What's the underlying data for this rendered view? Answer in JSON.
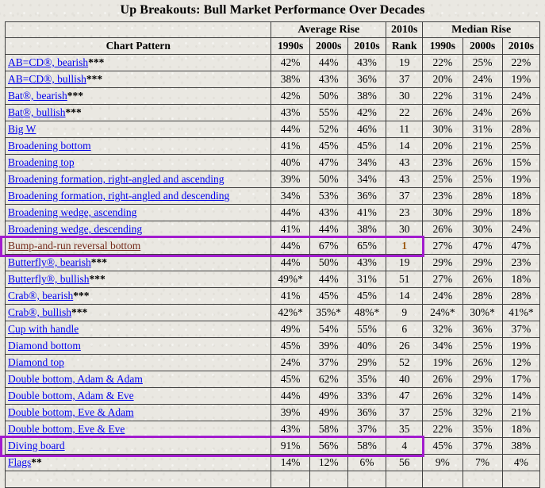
{
  "title": "Up Breakouts: Bull Market Performance Over Decades",
  "table": {
    "header_groups": {
      "corner": "",
      "average_rise": "Average Rise",
      "rank_decade": "2010s",
      "median_rise": "Median Rise"
    },
    "columns": [
      "Chart Pattern",
      "1990s",
      "2000s",
      "2010s",
      "Rank",
      "1990s",
      "2000s",
      "2010s"
    ],
    "rows": [
      {
        "pattern": "AB=CD®, bearish",
        "suffix": "***",
        "values": [
          "42%",
          "44%",
          "43%",
          "19",
          "22%",
          "25%",
          "22%"
        ]
      },
      {
        "pattern": "AB=CD®, bullish",
        "suffix": "***",
        "values": [
          "38%",
          "43%",
          "36%",
          "37",
          "20%",
          "24%",
          "19%"
        ]
      },
      {
        "pattern": "Bat®, bearish",
        "suffix": "***",
        "values": [
          "42%",
          "50%",
          "38%",
          "30",
          "22%",
          "31%",
          "24%"
        ]
      },
      {
        "pattern": "Bat®, bullish",
        "suffix": "***",
        "values": [
          "43%",
          "55%",
          "42%",
          "22",
          "26%",
          "24%",
          "26%"
        ]
      },
      {
        "pattern": "Big W",
        "suffix": "",
        "values": [
          "44%",
          "52%",
          "46%",
          "11",
          "30%",
          "31%",
          "28%"
        ]
      },
      {
        "pattern": "Broadening bottom",
        "suffix": "",
        "values": [
          "41%",
          "45%",
          "45%",
          "14",
          "20%",
          "21%",
          "25%"
        ]
      },
      {
        "pattern": "Broadening top",
        "suffix": "",
        "values": [
          "40%",
          "47%",
          "34%",
          "43",
          "23%",
          "26%",
          "15%"
        ]
      },
      {
        "pattern": "Broadening formation, right-angled and ascending",
        "suffix": "",
        "values": [
          "39%",
          "50%",
          "34%",
          "43",
          "25%",
          "25%",
          "19%"
        ]
      },
      {
        "pattern": "Broadening formation, right-angled and descending",
        "suffix": "",
        "values": [
          "34%",
          "53%",
          "36%",
          "37",
          "23%",
          "28%",
          "18%"
        ]
      },
      {
        "pattern": "Broadening wedge, ascending",
        "suffix": "",
        "values": [
          "44%",
          "43%",
          "41%",
          "23",
          "30%",
          "29%",
          "18%"
        ]
      },
      {
        "pattern": "Broadening wedge, descending",
        "suffix": "",
        "values": [
          "41%",
          "44%",
          "38%",
          "30",
          "26%",
          "30%",
          "24%"
        ]
      },
      {
        "pattern": "Bump-and-run reversal bottom",
        "suffix": "",
        "values": [
          "44%",
          "67%",
          "65%",
          "1",
          "27%",
          "47%",
          "47%"
        ],
        "highlight": true,
        "visited": true,
        "rank_accent": true
      },
      {
        "pattern": "Butterfly®, bearish",
        "suffix": "***",
        "values": [
          "44%",
          "50%",
          "43%",
          "19",
          "29%",
          "29%",
          "23%"
        ]
      },
      {
        "pattern": "Butterfly®, bullish",
        "suffix": "***",
        "values": [
          "49%*",
          "44%",
          "31%",
          "51",
          "27%",
          "26%",
          "18%"
        ]
      },
      {
        "pattern": "Crab®, bearish",
        "suffix": "***",
        "values": [
          "41%",
          "45%",
          "45%",
          "14",
          "24%",
          "28%",
          "28%"
        ]
      },
      {
        "pattern": "Crab®, bullish",
        "suffix": "***",
        "values": [
          "42%*",
          "35%*",
          "48%*",
          "9",
          "24%*",
          "30%*",
          "41%*"
        ]
      },
      {
        "pattern": "Cup with handle",
        "suffix": "",
        "values": [
          "49%",
          "54%",
          "55%",
          "6",
          "32%",
          "36%",
          "37%"
        ]
      },
      {
        "pattern": "Diamond bottom",
        "suffix": "",
        "values": [
          "45%",
          "39%",
          "40%",
          "26",
          "34%",
          "25%",
          "19%"
        ]
      },
      {
        "pattern": "Diamond top",
        "suffix": "",
        "values": [
          "24%",
          "37%",
          "29%",
          "52",
          "19%",
          "26%",
          "12%"
        ]
      },
      {
        "pattern": "Double bottom, Adam & Adam",
        "suffix": "",
        "values": [
          "45%",
          "62%",
          "35%",
          "40",
          "26%",
          "29%",
          "17%"
        ]
      },
      {
        "pattern": "Double bottom, Adam & Eve",
        "suffix": "",
        "values": [
          "44%",
          "49%",
          "33%",
          "47",
          "26%",
          "32%",
          "14%"
        ]
      },
      {
        "pattern": "Double bottom, Eve & Adam",
        "suffix": "",
        "values": [
          "39%",
          "49%",
          "36%",
          "37",
          "25%",
          "32%",
          "21%"
        ]
      },
      {
        "pattern": "Double bottom, Eve & Eve",
        "suffix": "",
        "values": [
          "43%",
          "58%",
          "37%",
          "35",
          "22%",
          "35%",
          "18%"
        ]
      },
      {
        "pattern": "Diving board",
        "suffix": "",
        "values": [
          "91%",
          "56%",
          "58%",
          "4",
          "45%",
          "37%",
          "38%"
        ],
        "highlight": true
      },
      {
        "pattern": "Flags",
        "suffix": "**",
        "values": [
          "14%",
          "12%",
          "6%",
          "56",
          "9%",
          "7%",
          "4%"
        ]
      }
    ]
  },
  "colors": {
    "link": "#0000EE",
    "visited_link": "#722818",
    "rank_accent": "#9C5A14",
    "highlight_border": "#A21BCE",
    "table_border": "#3F3F3F",
    "text": "#000000",
    "page_background": "#EAE8E2"
  }
}
